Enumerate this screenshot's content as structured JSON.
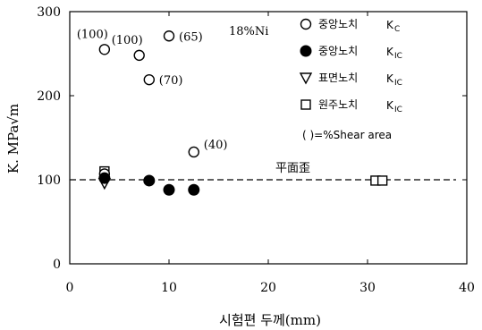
{
  "chart_data": {
    "type": "scatter",
    "title": "",
    "xlabel": "시험편 두께(mm)",
    "ylabel": "K. MPa√m",
    "xlim": [
      0,
      40
    ],
    "ylim": [
      0,
      300
    ],
    "x_ticks": [
      "0",
      "10",
      "20",
      "30",
      "40"
    ],
    "y_ticks": [
      "0",
      "100",
      "200",
      "300"
    ],
    "note": "18%Ni",
    "reference_line": {
      "y": 100,
      "label": "平面歪",
      "style": "dashed"
    },
    "series": [
      {
        "name": "중앙노치 KC",
        "legend_main": "중앙노치",
        "legend_k": "K",
        "legend_sub": "C",
        "marker": "open-circle",
        "points": [
          {
            "x": 3.5,
            "y": 255,
            "label": "(100)"
          },
          {
            "x": 7,
            "y": 248,
            "label": "(100)"
          },
          {
            "x": 10,
            "y": 271,
            "label": "(65)"
          },
          {
            "x": 8,
            "y": 219,
            "label": "(70)"
          },
          {
            "x": 12.5,
            "y": 133,
            "label": "(40)"
          },
          {
            "x": 3.5,
            "y": 107,
            "label": ""
          }
        ]
      },
      {
        "name": "중앙노치 KIC",
        "legend_main": "중앙노치",
        "legend_k": "K",
        "legend_sub": "IC",
        "marker": "filled-circle",
        "points": [
          {
            "x": 3.5,
            "y": 102,
            "label": ""
          },
          {
            "x": 8,
            "y": 99,
            "label": ""
          },
          {
            "x": 10,
            "y": 88,
            "label": ""
          },
          {
            "x": 12.5,
            "y": 88,
            "label": ""
          }
        ]
      },
      {
        "name": "표면노치 KIC",
        "legend_main": "표면노치",
        "legend_k": "K",
        "legend_sub": "IC",
        "marker": "open-triangle-down",
        "points": [
          {
            "x": 3.5,
            "y": 96,
            "label": ""
          }
        ]
      },
      {
        "name": "원주노치 KIC",
        "legend_main": "원주노치",
        "legend_k": "K",
        "legend_sub": "IC",
        "marker": "open-square",
        "points": [
          {
            "x": 3.5,
            "y": 110,
            "label": ""
          },
          {
            "x": 30.8,
            "y": 99,
            "label": ""
          },
          {
            "x": 31.5,
            "y": 99,
            "label": ""
          }
        ]
      }
    ],
    "legend_footnote": "( )=%Shear area",
    "legend_position": "top-right",
    "grid": false
  }
}
